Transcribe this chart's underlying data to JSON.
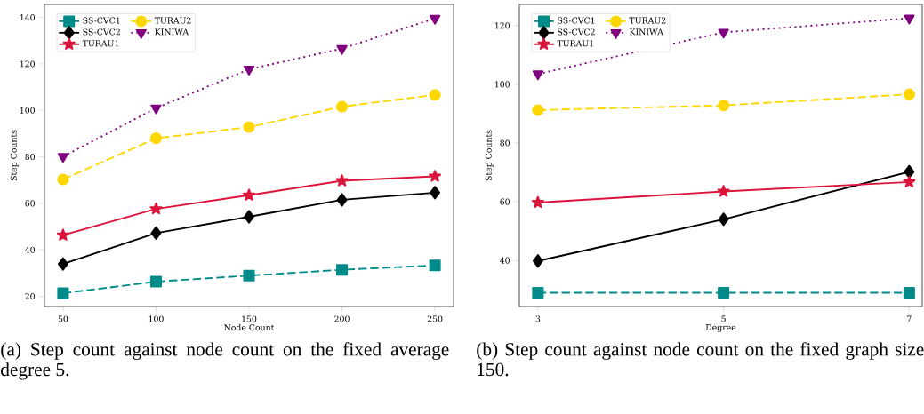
{
  "chart_data": [
    {
      "type": "line",
      "xlabel": "Node Count",
      "ylabel": "Step Counts",
      "x": [
        50,
        100,
        150,
        200,
        250
      ],
      "xlim": [
        40,
        260
      ],
      "ylim": [
        15.6,
        145.6
      ],
      "xticks": [
        50,
        100,
        150,
        200,
        250
      ],
      "yticks": [
        20,
        40,
        60,
        80,
        100,
        120,
        140
      ],
      "legend": "top left",
      "grid": false,
      "series": [
        {
          "name": "SS-CVC1",
          "color": "#008b8b",
          "marker": "square",
          "line_style": "dashed",
          "values": [
            21.3,
            26.3,
            28.9,
            31.4,
            33.3
          ]
        },
        {
          "name": "SS-CVC2",
          "color": "#000000",
          "marker": "diamond",
          "line_style": "solid",
          "values": [
            33.9,
            47.2,
            54.2,
            61.5,
            64.6
          ]
        },
        {
          "name": "TURAU1",
          "color": "#dc143c",
          "marker": "star",
          "line_style": "solid",
          "values": [
            46.3,
            57.6,
            63.5,
            69.7,
            71.6
          ]
        },
        {
          "name": "TURAU2",
          "color": "#ffd700",
          "marker": "circle",
          "line_style": "dashed",
          "values": [
            70.3,
            88.0,
            92.8,
            101.6,
            106.7
          ]
        },
        {
          "name": "KINIWA",
          "color": "#800080",
          "marker": "triangle",
          "line_style": "dotted",
          "values": [
            80.1,
            101.0,
            117.7,
            126.6,
            139.6
          ]
        }
      ],
      "annotations": [
        "(a) Step count against node count on the fixed average degree 5."
      ]
    },
    {
      "type": "line",
      "xlabel": "Degree",
      "ylabel": "Step Counts",
      "x": [
        3,
        5,
        7
      ],
      "xlim": [
        2.8,
        7.14
      ],
      "ylim": [
        24.3,
        127.2
      ],
      "xticks": [
        3,
        5,
        7
      ],
      "yticks": [
        40,
        60,
        80,
        100,
        120
      ],
      "legend": "top left",
      "grid": false,
      "series": [
        {
          "name": "SS-CVC1",
          "color": "#008b8b",
          "marker": "square",
          "line_style": "dashed",
          "values": [
            29.0,
            29.0,
            29.0
          ]
        },
        {
          "name": "SS-CVC2",
          "color": "#000000",
          "marker": "diamond",
          "line_style": "solid",
          "values": [
            39.8,
            54.0,
            70.2
          ]
        },
        {
          "name": "TURAU1",
          "color": "#dc143c",
          "marker": "star",
          "line_style": "solid",
          "values": [
            59.7,
            63.5,
            66.7
          ]
        },
        {
          "name": "TURAU2",
          "color": "#ffd700",
          "marker": "circle",
          "line_style": "dashed",
          "values": [
            91.2,
            92.8,
            96.6
          ]
        },
        {
          "name": "KINIWA",
          "color": "#800080",
          "marker": "triangle",
          "line_style": "dotted",
          "values": [
            103.5,
            117.7,
            122.5
          ]
        }
      ],
      "annotations": [
        "(b) Step count against node count on the fixed graph size 150."
      ]
    }
  ]
}
